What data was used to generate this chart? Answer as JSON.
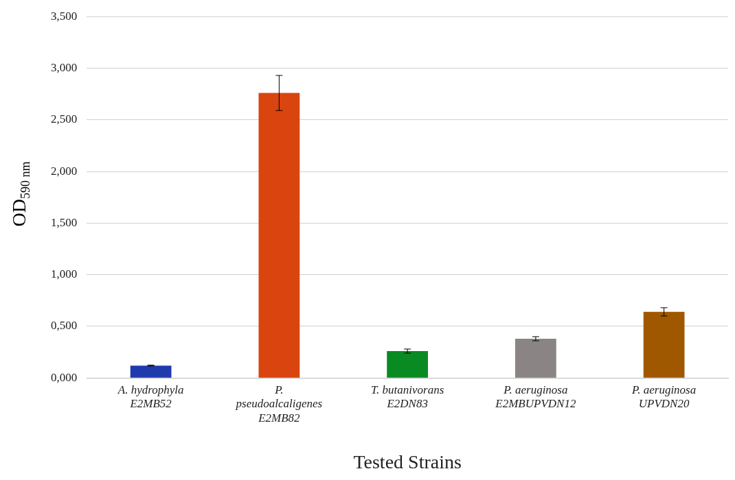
{
  "chart_data": {
    "type": "bar",
    "xlabel": "Tested Strains",
    "ylabel": "OD$_{590 nm}$",
    "categories": [
      "A. hydrophyla E2MB52",
      "P. pseudoalcaligenes E2MB82",
      "T. butanivorans E2DN83",
      "P. aeruginosa E2MBUPVDN12",
      "P. aeruginosa UPVDN20"
    ],
    "values": [
      0.12,
      2.76,
      0.26,
      0.38,
      0.64
    ],
    "errors": [
      0.005,
      0.17,
      0.02,
      0.02,
      0.04
    ],
    "colors": [
      "#1f3aad",
      "#d9440f",
      "#0a8a23",
      "#8a8584",
      "#a05800"
    ],
    "ylim": [
      0,
      3.5
    ],
    "yticks": [
      {
        "value": 0,
        "label": "0,000"
      },
      {
        "value": 0.5,
        "label": "0,500"
      },
      {
        "value": 1,
        "label": "1,000"
      },
      {
        "value": 1.5,
        "label": "1,500"
      },
      {
        "value": 2,
        "label": "2,000"
      },
      {
        "value": 2.5,
        "label": "2,500"
      },
      {
        "value": 3,
        "label": "3,000"
      },
      {
        "value": 3.5,
        "label": "3,500"
      }
    ],
    "grid": "y",
    "legend": false
  }
}
